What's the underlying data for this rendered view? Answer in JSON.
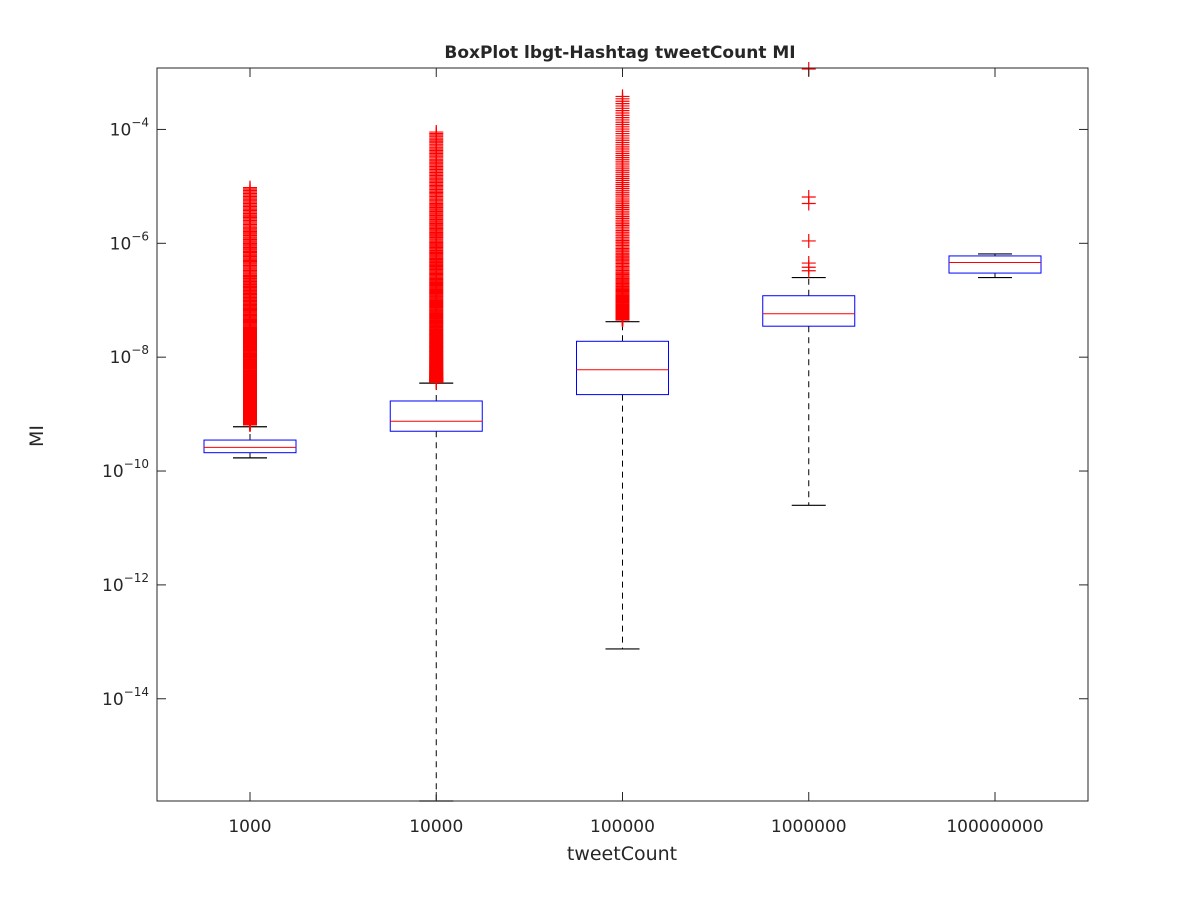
{
  "chart_data": {
    "type": "boxplot",
    "title": "BoxPlot lbgt-Hashtag tweetCount MI",
    "xlabel": "tweetCount",
    "ylabel": "MI",
    "yscale": "log",
    "ylim": [
      1.6e-16,
      0.0012
    ],
    "categories": [
      "1000",
      "10000",
      "100000",
      "1000000",
      "100000000"
    ],
    "yticks": [
      {
        "value": 0.0001,
        "base": "10",
        "exp": "−4"
      },
      {
        "value": 1e-06,
        "base": "10",
        "exp": "−6"
      },
      {
        "value": 1e-08,
        "base": "10",
        "exp": "−8"
      },
      {
        "value": 1e-10,
        "base": "10",
        "exp": "−10"
      },
      {
        "value": 1e-12,
        "base": "10",
        "exp": "−12"
      },
      {
        "value": 1e-14,
        "base": "10",
        "exp": "−14"
      }
    ],
    "boxes": [
      {
        "category": "1000",
        "whisker_low": 1.7e-10,
        "q1": 2.1e-10,
        "median": 2.6e-10,
        "q3": 3.5e-10,
        "whisker_high": 6e-10,
        "outlier_range": [
          6.5e-10,
          9.5e-06
        ],
        "outlier_density": "dense"
      },
      {
        "category": "10000",
        "whisker_low": 1.6e-16,
        "q1": 5e-10,
        "median": 7.5e-10,
        "q3": 1.7e-09,
        "whisker_high": 3.5e-09,
        "outlier_range": [
          3.6e-09,
          9e-05
        ],
        "outlier_density": "dense"
      },
      {
        "category": "100000",
        "whisker_low": 7.5e-14,
        "q1": 2.2e-09,
        "median": 6e-09,
        "q3": 1.9e-08,
        "whisker_high": 4.2e-08,
        "outlier_range": [
          4.5e-08,
          0.00038
        ],
        "outlier_density": "medium"
      },
      {
        "category": "1000000",
        "whisker_low": 2.5e-11,
        "q1": 3.5e-08,
        "median": 5.8e-08,
        "q3": 1.2e-07,
        "whisker_high": 2.5e-07,
        "outliers": [
          3.3e-07,
          3.8e-07,
          4.5e-07,
          1.1e-06,
          5e-06,
          6.5e-06,
          0.00115
        ]
      },
      {
        "category": "100000000",
        "whisker_low": 2.5e-07,
        "q1": 3e-07,
        "median": 4.6e-07,
        "q3": 6e-07,
        "whisker_high": 6.5e-07,
        "outliers": []
      }
    ],
    "colors": {
      "box": "#0000ff",
      "median": "#ff0000",
      "whisker": "#000000",
      "outlier": "#ff0000",
      "axis": "#262626"
    }
  }
}
